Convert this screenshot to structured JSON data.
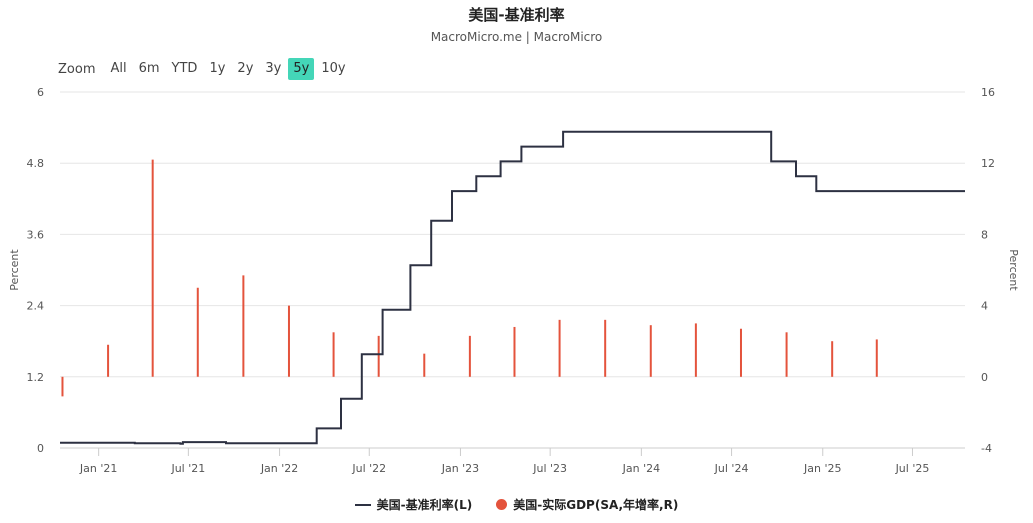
{
  "header": {
    "title": "美国-基准利率",
    "subtitle": "MacroMicro.me | MacroMicro"
  },
  "range_selector": {
    "label": "Zoom",
    "buttons": [
      "All",
      "6m",
      "YTD",
      "1y",
      "2y",
      "3y",
      "5y",
      "10y"
    ],
    "active": "5y"
  },
  "colors": {
    "rate_line": "#2d3142",
    "gdp_bar": "#e4533c",
    "active_button": "#44d6b8"
  },
  "chart_data": {
    "type": "line",
    "title": "美国-基准利率",
    "subtitle": "MacroMicro.me | MacroMicro",
    "x_axis": {
      "range": [
        "2020-10-15",
        "2025-10-15"
      ],
      "ticks": [
        {
          "date": "2021-01-01",
          "label": "Jan '21"
        },
        {
          "date": "2021-07-01",
          "label": "Jul '21"
        },
        {
          "date": "2022-01-01",
          "label": "Jan '22"
        },
        {
          "date": "2022-07-01",
          "label": "Jul '22"
        },
        {
          "date": "2023-01-01",
          "label": "Jan '23"
        },
        {
          "date": "2023-07-01",
          "label": "Jul '23"
        },
        {
          "date": "2024-01-01",
          "label": "Jan '24"
        },
        {
          "date": "2024-07-01",
          "label": "Jul '24"
        },
        {
          "date": "2025-01-01",
          "label": "Jan '25"
        },
        {
          "date": "2025-07-01",
          "label": "Jul '25"
        }
      ]
    },
    "y_left": {
      "label": "Percent",
      "range": [
        0,
        6
      ],
      "ticks": [
        "0",
        "1.2",
        "2.4",
        "3.6",
        "4.8",
        "6"
      ]
    },
    "y_right": {
      "label": "Percent",
      "range": [
        -4,
        16
      ],
      "ticks": [
        "-4",
        "0",
        "4",
        "8",
        "12",
        "16"
      ]
    },
    "grid": true,
    "legend_position": "bottom-center",
    "series": [
      {
        "name": "美国-基准利率(L)",
        "type": "step-line",
        "axis": "left",
        "points": [
          [
            "2020-10-15",
            0.09
          ],
          [
            "2021-03-15",
            0.08
          ],
          [
            "2021-06-15",
            0.07
          ],
          [
            "2021-06-20",
            0.1
          ],
          [
            "2021-09-15",
            0.08
          ],
          [
            "2022-03-17",
            0.08
          ],
          [
            "2022-03-17",
            0.33
          ],
          [
            "2022-05-05",
            0.83
          ],
          [
            "2022-06-16",
            1.58
          ],
          [
            "2022-07-28",
            2.33
          ],
          [
            "2022-09-22",
            3.08
          ],
          [
            "2022-11-03",
            3.83
          ],
          [
            "2022-12-15",
            4.33
          ],
          [
            "2023-02-02",
            4.58
          ],
          [
            "2023-03-23",
            4.83
          ],
          [
            "2023-05-04",
            5.08
          ],
          [
            "2023-07-27",
            5.33
          ],
          [
            "2024-09-19",
            4.83
          ],
          [
            "2024-11-08",
            4.58
          ],
          [
            "2024-12-19",
            4.33
          ],
          [
            "2025-10-15",
            4.33
          ]
        ]
      },
      {
        "name": "美国-实际GDP(SA,年增率,R)",
        "type": "bar",
        "axis": "right",
        "points": [
          [
            "2020-10-20",
            -1.1
          ],
          [
            "2021-01-20",
            1.8
          ],
          [
            "2021-04-20",
            12.2
          ],
          [
            "2021-07-20",
            5.0
          ],
          [
            "2021-10-20",
            5.7
          ],
          [
            "2022-01-20",
            4.0
          ],
          [
            "2022-04-20",
            2.5
          ],
          [
            "2022-07-20",
            2.3
          ],
          [
            "2022-10-20",
            1.3
          ],
          [
            "2023-01-20",
            2.3
          ],
          [
            "2023-04-20",
            2.8
          ],
          [
            "2023-07-20",
            3.2
          ],
          [
            "2023-10-20",
            3.2
          ],
          [
            "2024-01-20",
            2.9
          ],
          [
            "2024-04-20",
            3.0
          ],
          [
            "2024-07-20",
            2.7
          ],
          [
            "2024-10-20",
            2.5
          ],
          [
            "2025-01-20",
            2.0
          ],
          [
            "2025-04-20",
            2.1
          ]
        ]
      }
    ]
  }
}
